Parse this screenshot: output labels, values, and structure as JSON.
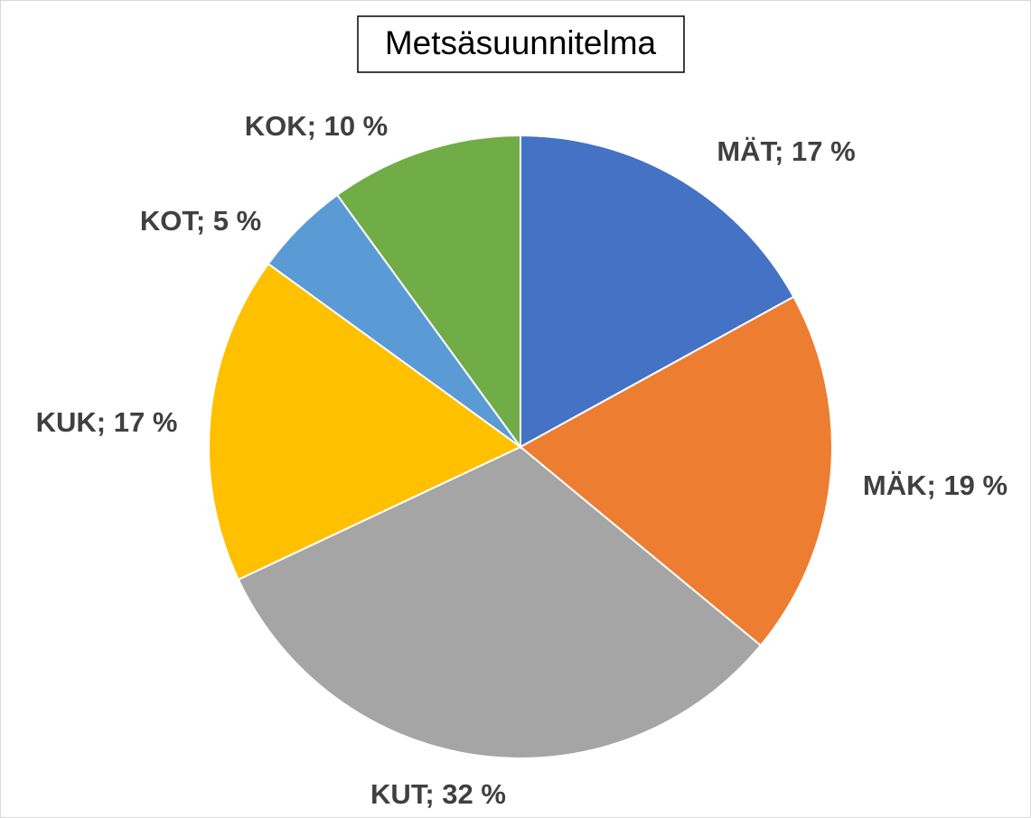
{
  "chart_data": {
    "type": "pie",
    "title": "Metsäsuunnitelma",
    "categories": [
      "MÄT",
      "MÄK",
      "KUT",
      "KUK",
      "KOT",
      "KOK"
    ],
    "values": [
      17,
      19,
      32,
      17,
      5,
      10
    ],
    "value_labels": [
      "17 %",
      "19 %",
      "32 %",
      "17 %",
      "5 %",
      "10 %"
    ],
    "label_separator": "; ",
    "colors": [
      "#4472c4",
      "#ed7d31",
      "#a5a5a5",
      "#ffc000",
      "#5b9bd5",
      "#70ad47"
    ]
  }
}
